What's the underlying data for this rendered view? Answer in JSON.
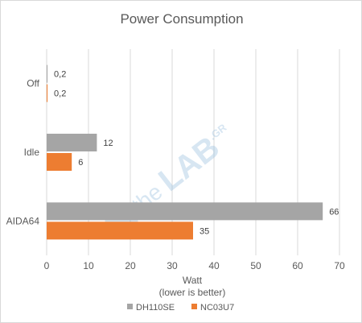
{
  "chart_data": {
    "type": "bar",
    "orientation": "horizontal",
    "title": "Power Consumption",
    "xlabel_lines": [
      "Watt",
      "(lower is better)"
    ],
    "categories": [
      "Off",
      "Idle",
      "AIDA64"
    ],
    "value_labels": [
      [
        "0,2",
        "0,2"
      ],
      [
        "12",
        "6"
      ],
      [
        "66",
        "35"
      ]
    ],
    "series": [
      {
        "name": "DH110SE",
        "color": "#a5a5a5",
        "values": [
          0.2,
          12,
          66
        ]
      },
      {
        "name": "NC03U7",
        "color": "#ed7d31",
        "values": [
          0.2,
          6,
          35
        ]
      }
    ],
    "xlim": [
      0,
      70
    ],
    "xticks": [
      0,
      10,
      20,
      30,
      40,
      50,
      60,
      70
    ],
    "grid": true,
    "legend_position": "bottom"
  },
  "watermark": {
    "prefix": "the",
    "main": "LAB",
    "suffix": ".GR"
  }
}
